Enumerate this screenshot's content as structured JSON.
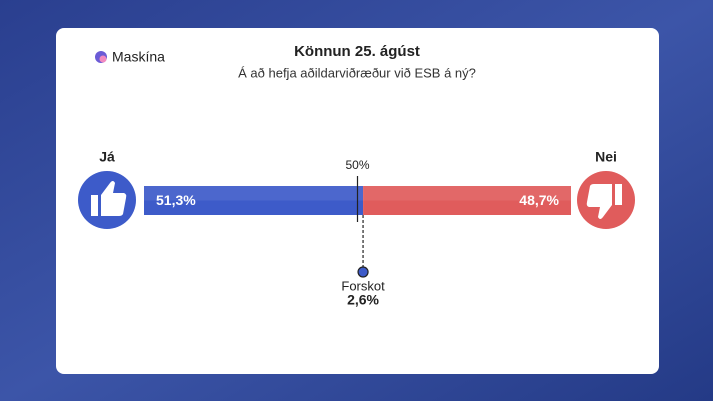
{
  "brand": "Maskína",
  "chart_data": {
    "type": "split-bar",
    "title": "Könnun 25. ágúst",
    "subtitle": "Á að hefja aðildarviðræður við ESB á ný?",
    "xlim": [
      0,
      100
    ],
    "xticks": [
      {
        "value": 50,
        "label": "50%"
      }
    ],
    "series": [
      {
        "name": "Já",
        "color": "#3d5bc9",
        "values": [
          51.3
        ],
        "value_labels": [
          "51,3%"
        ]
      },
      {
        "name": "Nei",
        "color": "#e05c5c",
        "values": [
          48.7
        ],
        "value_labels": [
          "48,7%"
        ]
      }
    ],
    "annotations": [
      {
        "text": "Forskot",
        "value": 2.6,
        "label": "2,6%"
      }
    ]
  }
}
